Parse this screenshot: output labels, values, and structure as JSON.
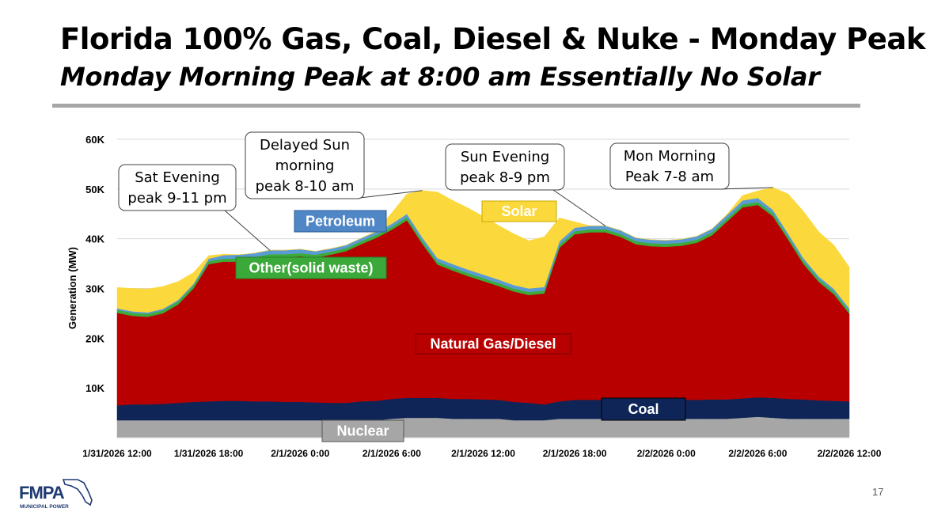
{
  "slide": {
    "title": "Florida 100% Gas, Coal, Diesel & Nuke - Monday Peak",
    "subtitle": "Monday Morning Peak at 8:00 am Essentially No Solar",
    "page_number": "17",
    "logo_text": "FMPA",
    "logo_subtext": "MUNICIPAL POWER"
  },
  "chart_data": {
    "type": "area",
    "stacked": true,
    "ylabel": "Generation (MW)",
    "ylim": [
      0,
      60000
    ],
    "y_ticks": [
      {
        "value": 10000,
        "label": "10K"
      },
      {
        "value": 20000,
        "label": "20K"
      },
      {
        "value": 30000,
        "label": "30K"
      },
      {
        "value": 40000,
        "label": "40K"
      },
      {
        "value": 50000,
        "label": "50K"
      },
      {
        "value": 60000,
        "label": "60K"
      }
    ],
    "x_ticks": [
      "1/31/2026 12:00",
      "1/31/2026 18:00",
      "2/1/2026 0:00",
      "2/1/2026 6:00",
      "2/1/2026 12:00",
      "2/1/2026 18:00",
      "2/2/2026 0:00",
      "2/2/2026 6:00",
      "2/2/2026 12:00"
    ],
    "x_hours": [
      0,
      1,
      2,
      3,
      4,
      5,
      6,
      7,
      8,
      9,
      10,
      11,
      12,
      13,
      14,
      15,
      16,
      17,
      18,
      19,
      20,
      21,
      22,
      23,
      24,
      25,
      26,
      27,
      28,
      29,
      30,
      31,
      32,
      33,
      34,
      35,
      36,
      37,
      38,
      39,
      40,
      41,
      42,
      43,
      44,
      45,
      46,
      47,
      48
    ],
    "grid": "horizontal",
    "series": [
      {
        "name": "Nuclear",
        "color": "#a6a6a6",
        "values": [
          3500,
          3500,
          3500,
          3500,
          3500,
          3500,
          3500,
          3500,
          3500,
          3500,
          3500,
          3500,
          3500,
          3500,
          3500,
          3500,
          3500,
          3500,
          3800,
          4000,
          4000,
          4000,
          3800,
          3800,
          3800,
          3800,
          3500,
          3500,
          3500,
          3800,
          3800,
          3800,
          3800,
          3800,
          3800,
          3800,
          3800,
          3800,
          3800,
          3800,
          3800,
          4000,
          4200,
          4000,
          3800,
          3800,
          3800,
          3800,
          3800
        ]
      },
      {
        "name": "Coal",
        "color": "#0f2557",
        "values": [
          3000,
          3200,
          3200,
          3300,
          3500,
          3700,
          3800,
          3900,
          3900,
          3800,
          3800,
          3700,
          3700,
          3600,
          3500,
          3500,
          3800,
          3900,
          4000,
          4000,
          4000,
          4000,
          4000,
          4000,
          3900,
          3800,
          3700,
          3500,
          3200,
          3500,
          3800,
          3800,
          3800,
          3800,
          3900,
          3900,
          3900,
          3800,
          3800,
          3900,
          3900,
          3900,
          3900,
          4000,
          4000,
          3900,
          3700,
          3600,
          3500
        ]
      },
      {
        "name": "Natural Gas/Diesel",
        "color": "#b80000",
        "values": [
          18600,
          17800,
          17600,
          18200,
          19800,
          22800,
          27600,
          28000,
          28000,
          28400,
          29000,
          29100,
          29300,
          29100,
          29800,
          30500,
          31600,
          32800,
          34000,
          35700,
          31000,
          26800,
          25800,
          24700,
          23800,
          22900,
          22200,
          21700,
          22300,
          30900,
          33300,
          33700,
          33700,
          32800,
          31200,
          30800,
          30700,
          31000,
          31600,
          33000,
          35800,
          38400,
          38700,
          36500,
          32000,
          27200,
          23800,
          21400,
          17600
        ]
      },
      {
        "name": "Other(solid waste)",
        "color": "#3cab3a",
        "values": [
          600,
          600,
          600,
          600,
          600,
          600,
          600,
          600,
          600,
          600,
          600,
          600,
          600,
          600,
          600,
          600,
          600,
          600,
          600,
          600,
          600,
          600,
          600,
          600,
          600,
          600,
          600,
          600,
          600,
          600,
          600,
          600,
          600,
          600,
          600,
          600,
          600,
          600,
          600,
          600,
          600,
          600,
          600,
          600,
          600,
          600,
          600,
          600,
          600
        ]
      },
      {
        "name": "Petroleum",
        "color": "#5b9bd5",
        "values": [
          300,
          300,
          300,
          300,
          300,
          300,
          500,
          700,
          800,
          800,
          800,
          800,
          800,
          700,
          600,
          600,
          600,
          600,
          600,
          700,
          700,
          700,
          700,
          700,
          700,
          700,
          700,
          700,
          700,
          700,
          700,
          700,
          700,
          700,
          700,
          700,
          700,
          700,
          700,
          700,
          700,
          800,
          800,
          700,
          600,
          600,
          500,
          500,
          500
        ]
      },
      {
        "name": "Solar",
        "color": "#fbd83b",
        "values": [
          4200,
          4600,
          4700,
          4500,
          3700,
          2300,
          600,
          200,
          0,
          0,
          0,
          0,
          0,
          0,
          0,
          0,
          0,
          200,
          2200,
          4000,
          9400,
          13300,
          12800,
          12400,
          11700,
          10900,
          10300,
          9600,
          10100,
          4700,
          1200,
          0,
          0,
          0,
          0,
          0,
          0,
          0,
          0,
          0,
          200,
          1000,
          1400,
          4500,
          8000,
          9400,
          9000,
          8800,
          8300
        ]
      }
    ],
    "series_labels": [
      {
        "series": "Petroleum",
        "text": "Petroleum"
      },
      {
        "series": "Other(solid waste)",
        "text": "Other(solid waste)"
      },
      {
        "series": "Solar",
        "text": "Solar"
      },
      {
        "series": "Natural Gas/Diesel",
        "text": "Natural Gas/Diesel"
      },
      {
        "series": "Coal",
        "text": "Coal"
      },
      {
        "series": "Nuclear",
        "text": "Nuclear"
      }
    ],
    "callouts": [
      {
        "lines": [
          "Sat Evening",
          "peak 9-11 pm"
        ],
        "x_hour": 10
      },
      {
        "lines": [
          "Delayed Sun",
          "morning",
          "peak 8-10 am"
        ],
        "x_hour": 20
      },
      {
        "lines": [
          "Sun Evening",
          "peak 8-9 pm"
        ],
        "x_hour": 32
      },
      {
        "lines": [
          "Mon Morning",
          "Peak 7-8 am"
        ],
        "x_hour": 43
      }
    ]
  }
}
